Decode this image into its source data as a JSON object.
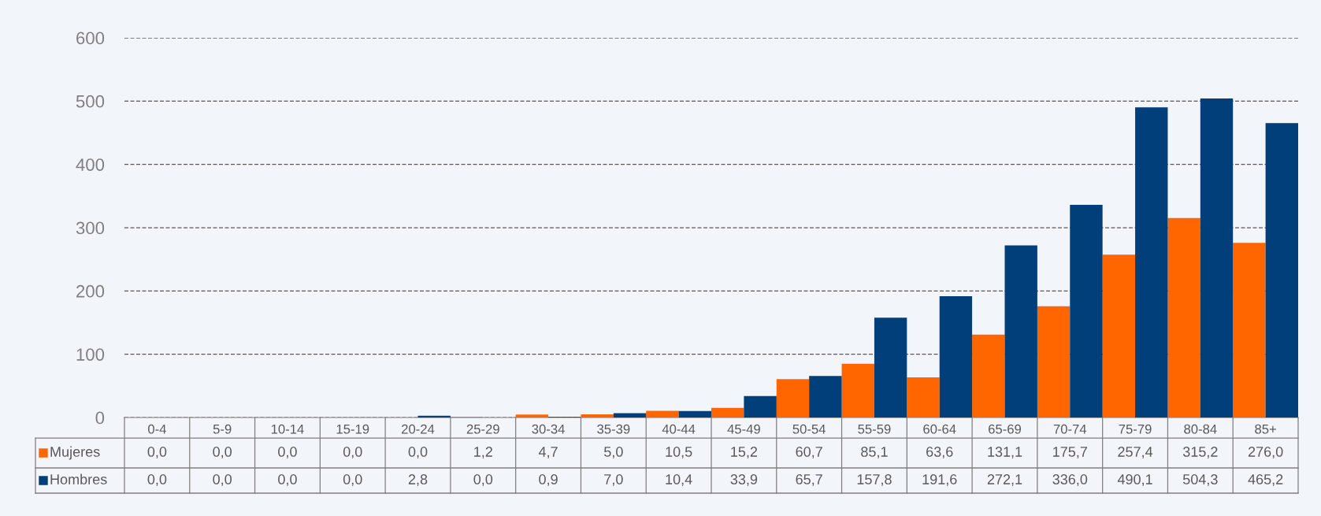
{
  "chart_data": {
    "type": "bar",
    "categories": [
      "0-4",
      "5-9",
      "10-14",
      "15-19",
      "20-24",
      "25-29",
      "30-34",
      "35-39",
      "40-44",
      "45-49",
      "50-54",
      "55-59",
      "60-64",
      "65-69",
      "70-74",
      "75-79",
      "80-84",
      "85+"
    ],
    "series": [
      {
        "name": "Mujeres",
        "color": "#ff6600",
        "values": [
          0.0,
          0.0,
          0.0,
          0.0,
          0.0,
          1.2,
          4.7,
          5.0,
          10.5,
          15.2,
          60.7,
          85.1,
          63.6,
          131.1,
          175.7,
          257.4,
          315.2,
          276.0
        ],
        "value_labels": [
          "0,0",
          "0,0",
          "0,0",
          "0,0",
          "0,0",
          "1,2",
          "4,7",
          "5,0",
          "10,5",
          "15,2",
          "60,7",
          "85,1",
          "63,6",
          "131,1",
          "175,7",
          "257,4",
          "315,2",
          "276,0"
        ]
      },
      {
        "name": "Hombres",
        "color": "#003f7a",
        "values": [
          0.0,
          0.0,
          0.0,
          0.0,
          2.8,
          0.0,
          0.9,
          7.0,
          10.4,
          33.9,
          65.7,
          157.8,
          191.6,
          272.1,
          336.0,
          490.1,
          504.3,
          465.2
        ],
        "value_labels": [
          "0,0",
          "0,0",
          "0,0",
          "0,0",
          "2,8",
          "0,0",
          "0,9",
          "7,0",
          "10,4",
          "33,9",
          "65,7",
          "157,8",
          "191,6",
          "272,1",
          "336,0",
          "490,1",
          "504,3",
          "465,2"
        ]
      }
    ],
    "ylim": [
      0,
      600
    ],
    "yticks": [
      0,
      100,
      200,
      300,
      400,
      500,
      600
    ],
    "grid": "y",
    "legend": "bottom left"
  }
}
